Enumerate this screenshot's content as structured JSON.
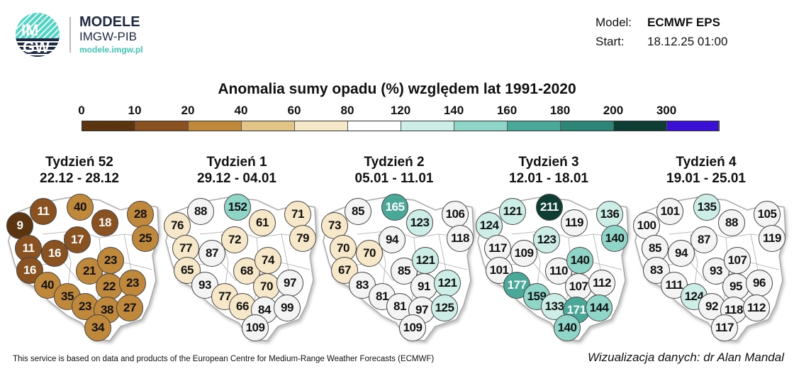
{
  "header": {
    "logo_text_top": "IM",
    "logo_text_bottom": "GW",
    "brand_title": "MODELE",
    "brand_subtitle": "IMGW-PIB",
    "brand_url": "modele.imgw.pl",
    "model_label": "Model:",
    "model_value": "ECMWF EPS",
    "start_label": "Start:",
    "start_value": "18.12.25 01:00"
  },
  "title": "Anomalia sumy opadu (%) względem lat 1991-2020",
  "legend": {
    "labels": [
      "0",
      "10",
      "20",
      "40",
      "60",
      "80",
      "120",
      "140",
      "160",
      "180",
      "200",
      "300"
    ],
    "colors": [
      "#5a3510",
      "#8a5220",
      "#c0883a",
      "#e2c486",
      "#f6e8c8",
      "#ffffff",
      "#cdeee6",
      "#8fd6c9",
      "#4aa899",
      "#2d8577",
      "#0d3d33",
      "#3a0fd6"
    ]
  },
  "weeks": [
    {
      "title": "Tydzień 52",
      "dates": "22.12 - 28.12",
      "values": [
        9,
        11,
        40,
        18,
        28,
        25,
        17,
        11,
        16,
        16,
        21,
        23,
        40,
        35,
        22,
        23,
        23,
        38,
        27,
        34
      ]
    },
    {
      "title": "Tydzień 1",
      "dates": "29.12 - 04.01",
      "values": [
        76,
        88,
        152,
        61,
        71,
        79,
        72,
        77,
        87,
        65,
        68,
        74,
        93,
        77,
        70,
        97,
        66,
        84,
        99,
        109
      ]
    },
    {
      "title": "Tydzień 2",
      "dates": "05.01 - 11.01",
      "values": [
        73,
        85,
        165,
        123,
        106,
        118,
        94,
        70,
        70,
        67,
        85,
        121,
        83,
        81,
        91,
        121,
        81,
        97,
        125,
        109
      ]
    },
    {
      "title": "Tydzień 3",
      "dates": "12.01 - 18.01",
      "values": [
        124,
        121,
        211,
        119,
        136,
        140,
        123,
        117,
        109,
        101,
        110,
        140,
        177,
        159,
        107,
        112,
        133,
        171,
        144,
        140
      ]
    },
    {
      "title": "Tydzień 4",
      "dates": "19.01 - 25.01",
      "values": [
        100,
        101,
        135,
        88,
        105,
        119,
        87,
        85,
        94,
        83,
        93,
        107,
        111,
        124,
        95,
        96,
        92,
        118,
        112,
        117
      ]
    }
  ],
  "footer": {
    "left": "This service is based on data and products of the European Centre for Medium-Range Weather Forecasts (ECMWF)",
    "right": "Wizualizacja danych: dr Alan Mandal"
  }
}
